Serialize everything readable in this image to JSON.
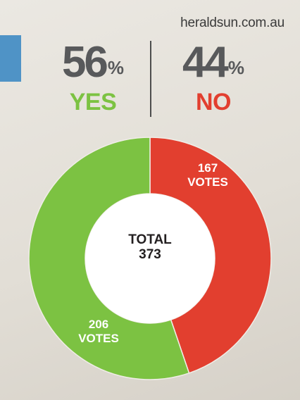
{
  "source": "heraldsun.com.au",
  "results": {
    "yes": {
      "percent": "56",
      "sign": "%",
      "label": "YES"
    },
    "no": {
      "percent": "44",
      "sign": "%",
      "label": "NO"
    }
  },
  "center": {
    "line1": "TOTAL",
    "line2": "373"
  },
  "colors": {
    "yes": "#7cc242",
    "no": "#e23f2f",
    "accent_tab": "#4f93c6",
    "percent_text": "#58595b"
  },
  "chart_data": {
    "type": "pie",
    "title": "",
    "total": 373,
    "slices": [
      {
        "name": "NO",
        "value": 167,
        "label_num": "167",
        "label_unit": "VOTES",
        "color": "#e23f2f"
      },
      {
        "name": "YES",
        "value": 206,
        "label_num": "206",
        "label_unit": "VOTES",
        "color": "#7cc242"
      }
    ]
  }
}
